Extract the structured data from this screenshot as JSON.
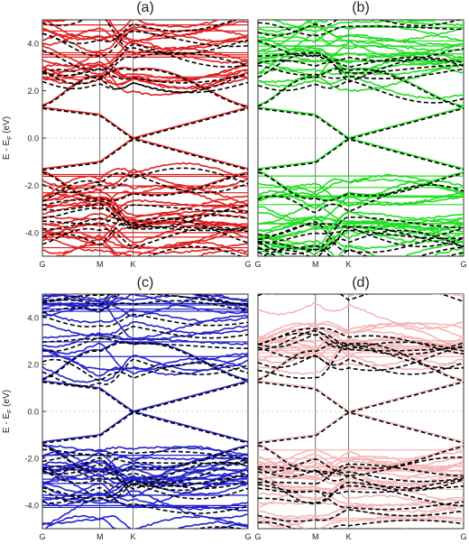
{
  "figure": {
    "shared": {
      "ylabel": "E - E",
      "ylabel_sub": "F",
      "ylabel_unit": " (eV)",
      "y_ticks": [
        4.0,
        2.0,
        0.0,
        -2.0,
        -4.0
      ],
      "y_tick_labels": [
        "4.0",
        "2.0",
        "0.0",
        "-2.0",
        "-4.0"
      ],
      "ylim": [
        -5,
        5
      ],
      "k_points": [
        "G",
        "M",
        "K",
        "G"
      ],
      "k_positions": [
        0,
        1,
        1.577,
        3.577
      ],
      "fermi_level": 0.0,
      "reference_style": "black dashed"
    }
  },
  "chart_data": [
    {
      "type": "line",
      "panel": "(a)",
      "color": "#e02020",
      "ylim": [
        -5,
        5
      ],
      "x_tick_labels": [
        "G",
        "M",
        "K",
        "G"
      ],
      "series": [
        {
          "role": "bands"
        },
        {
          "role": "reference-dashed"
        }
      ]
    },
    {
      "type": "line",
      "panel": "(b)",
      "color": "#22dd22",
      "ylim": [
        -5,
        5
      ],
      "x_tick_labels": [
        "G",
        "M",
        "K",
        "G"
      ],
      "series": [
        {
          "role": "bands"
        },
        {
          "role": "reference-dashed"
        }
      ]
    },
    {
      "type": "line",
      "panel": "(c)",
      "color": "#2222cc",
      "ylim": [
        -5,
        5
      ],
      "x_tick_labels": [
        "G",
        "M",
        "K",
        "G"
      ],
      "series": [
        {
          "role": "bands"
        },
        {
          "role": "reference-dashed"
        }
      ]
    },
    {
      "type": "line",
      "panel": "(d)",
      "color": "#f4b7b7",
      "ylim": [
        -5,
        5
      ],
      "x_tick_labels": [
        "G",
        "M",
        "K",
        "G"
      ],
      "series": [
        {
          "role": "bands"
        },
        {
          "role": "reference-dashed"
        }
      ]
    }
  ]
}
